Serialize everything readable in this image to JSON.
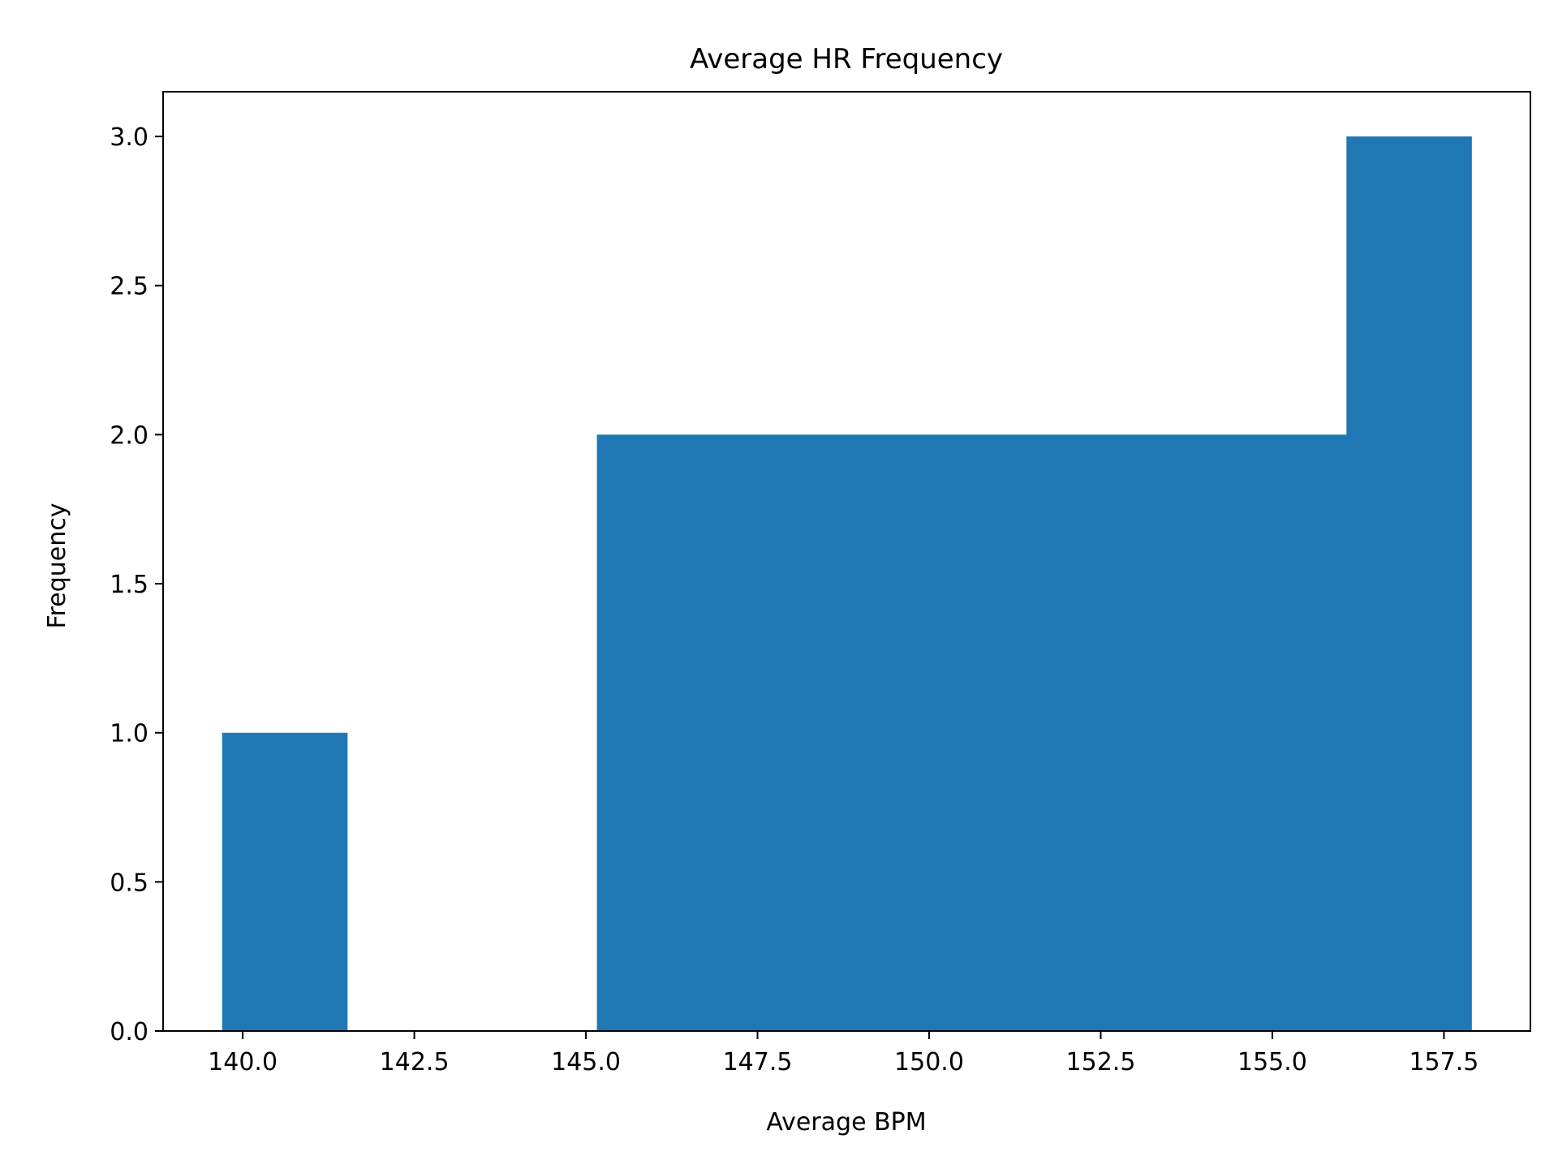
{
  "chart_data": {
    "type": "bar",
    "title": "Average HR Frequency",
    "xlabel": "Average BPM",
    "ylabel": "Frequency",
    "xlim": [
      138.84,
      158.76
    ],
    "ylim": [
      0,
      3.15
    ],
    "xticks": [
      "140.0",
      "142.5",
      "145.0",
      "147.5",
      "150.0",
      "152.5",
      "155.0",
      "157.5"
    ],
    "xtick_values": [
      140.0,
      142.5,
      145.0,
      147.5,
      150.0,
      152.5,
      155.0,
      157.5
    ],
    "yticks": [
      "0.0",
      "0.5",
      "1.0",
      "1.5",
      "2.0",
      "2.5",
      "3.0"
    ],
    "ytick_values": [
      0.0,
      0.5,
      1.0,
      1.5,
      2.0,
      2.5,
      3.0
    ],
    "bins": [
      {
        "x0": 139.7,
        "x1": 141.52,
        "count": 1
      },
      {
        "x0": 141.52,
        "x1": 143.34,
        "count": 0
      },
      {
        "x0": 143.34,
        "x1": 145.16,
        "count": 0
      },
      {
        "x0": 145.16,
        "x1": 146.98,
        "count": 2
      },
      {
        "x0": 146.98,
        "x1": 148.8,
        "count": 2
      },
      {
        "x0": 148.8,
        "x1": 150.62,
        "count": 2
      },
      {
        "x0": 150.62,
        "x1": 152.44,
        "count": 2
      },
      {
        "x0": 152.44,
        "x1": 154.26,
        "count": 2
      },
      {
        "x0": 154.26,
        "x1": 156.08,
        "count": 2
      },
      {
        "x0": 156.08,
        "x1": 157.9,
        "count": 3
      }
    ],
    "bar_color": "#1f77b4",
    "grid": false,
    "legend": "none"
  }
}
